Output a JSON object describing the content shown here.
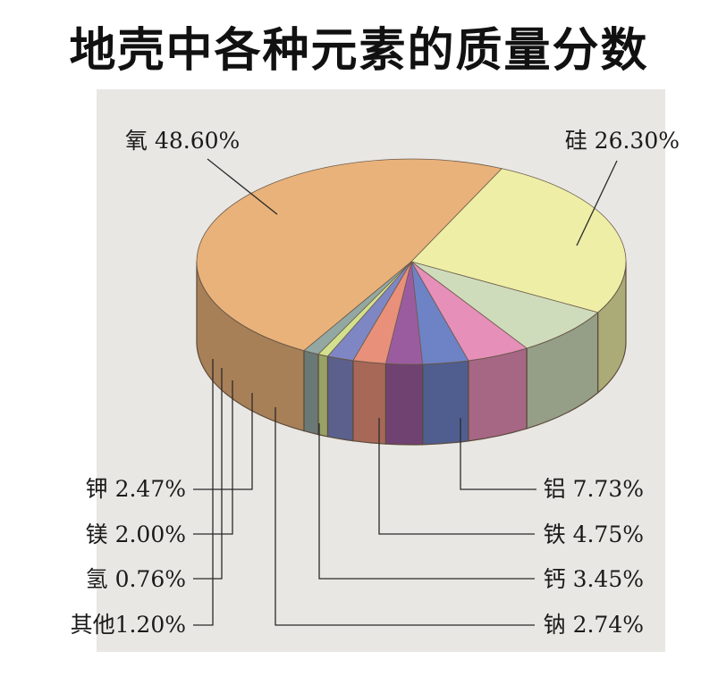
{
  "chart_data": {
    "type": "pie",
    "title": "地壳中各种元素的质量分数",
    "slices": [
      {
        "name": "氧",
        "value": 48.6,
        "label": "氧 48.60%",
        "color": "#e9b27a"
      },
      {
        "name": "硅",
        "value": 26.3,
        "label": "硅 26.30%",
        "color": "#eeeea6"
      },
      {
        "name": "铝",
        "value": 7.73,
        "label": "铝 7.73%",
        "color": "#cfdcbc"
      },
      {
        "name": "铁",
        "value": 4.75,
        "label": "铁 4.75%",
        "color": "#e68fb9"
      },
      {
        "name": "钙",
        "value": 3.45,
        "label": "钙 3.45%",
        "color": "#6e82c6"
      },
      {
        "name": "钠",
        "value": 2.74,
        "label": "钠 2.74%",
        "color": "#9a5c9f"
      },
      {
        "name": "钾",
        "value": 2.47,
        "label": "钾 2.47%",
        "color": "#e8907a"
      },
      {
        "name": "镁",
        "value": 2.0,
        "label": "镁 2.00%",
        "color": "#7e86c4"
      },
      {
        "name": "氢",
        "value": 0.76,
        "label": "氢 0.76%",
        "color": "#d3e08e"
      },
      {
        "name": "其他",
        "value": 1.2,
        "label": "其他1.20%",
        "color": "#93a8a2"
      }
    ]
  }
}
